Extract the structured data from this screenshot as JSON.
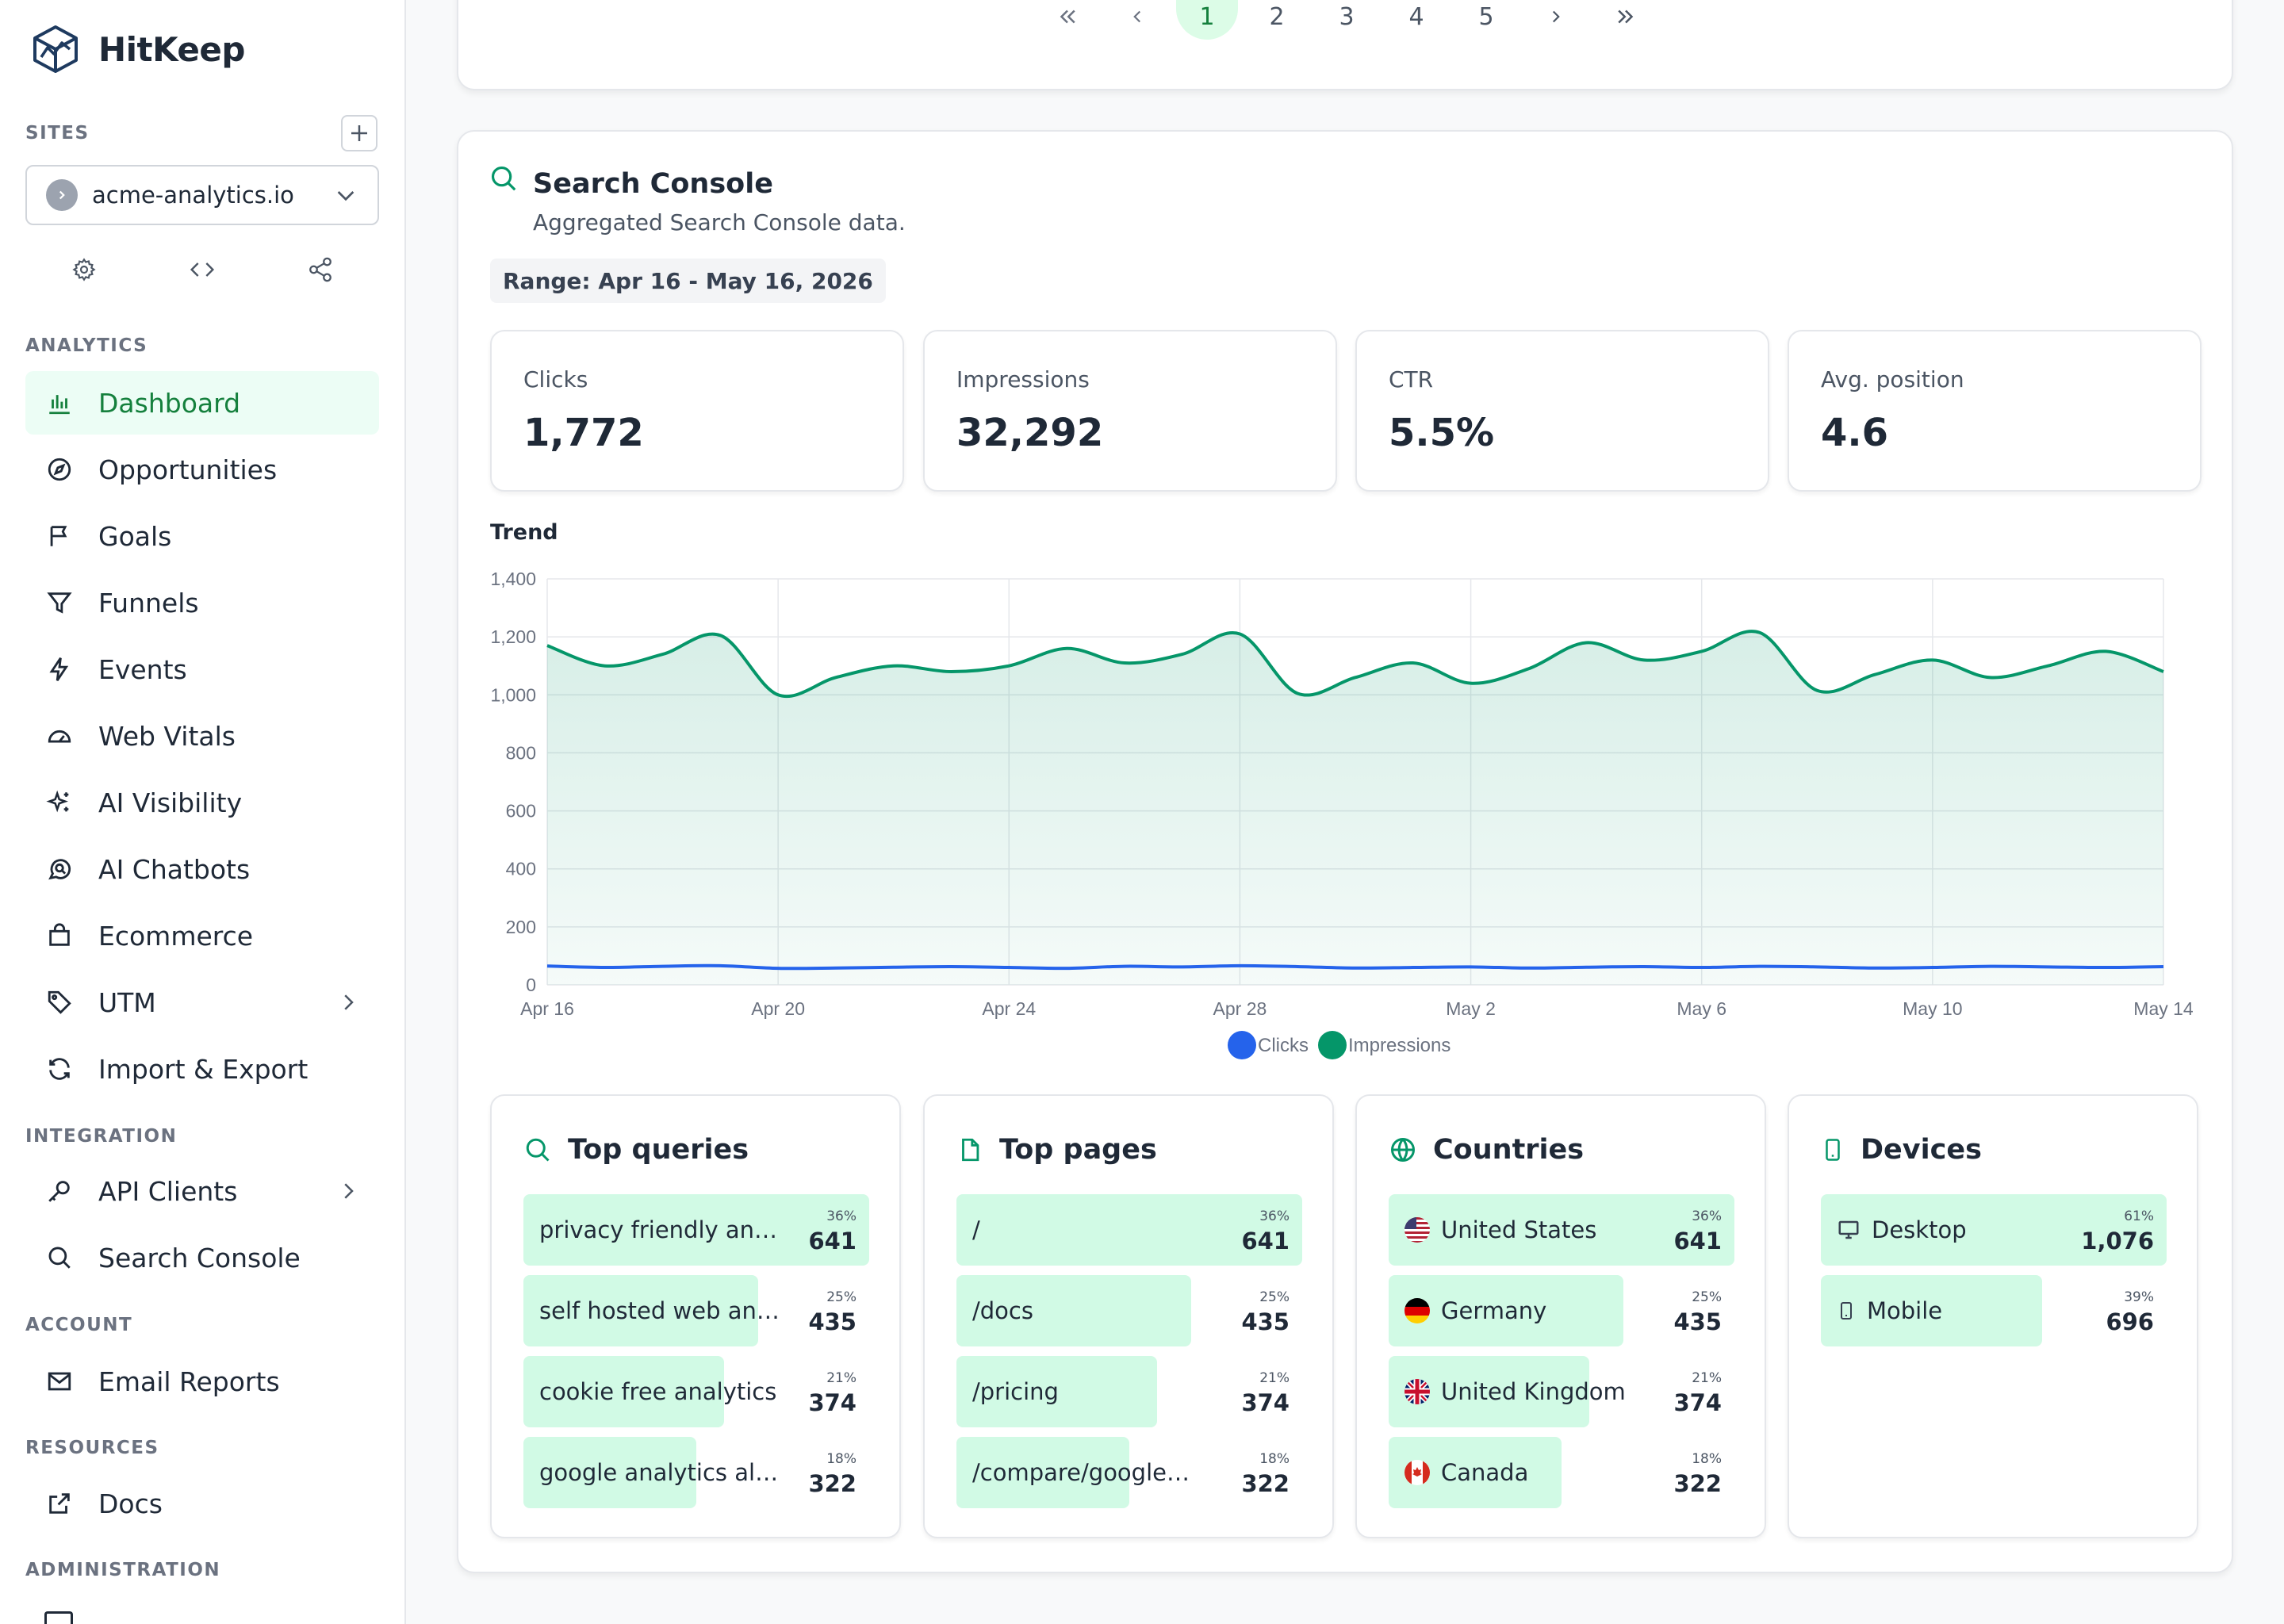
{
  "app": {
    "name": "HitKeep"
  },
  "sidebar": {
    "sites_label": "SITES",
    "site": {
      "name": "acme-analytics.io"
    },
    "sections": {
      "analytics": "ANALYTICS",
      "integration": "INTEGRATION",
      "account": "ACCOUNT",
      "resources": "RESOURCES",
      "administration": "ADMINISTRATION"
    },
    "items": [
      {
        "label": "Dashboard",
        "icon": "bar-chart-icon",
        "active": true
      },
      {
        "label": "Opportunities",
        "icon": "compass-icon"
      },
      {
        "label": "Goals",
        "icon": "flag-icon"
      },
      {
        "label": "Funnels",
        "icon": "funnel-icon"
      },
      {
        "label": "Events",
        "icon": "bolt-icon"
      },
      {
        "label": "Web Vitals",
        "icon": "gauge-icon"
      },
      {
        "label": "AI Visibility",
        "icon": "sparkles-icon"
      },
      {
        "label": "AI Chatbots",
        "icon": "chat-search-icon"
      },
      {
        "label": "Ecommerce",
        "icon": "shopping-bag-icon"
      },
      {
        "label": "UTM",
        "icon": "tag-icon"
      },
      {
        "label": "Import & Export",
        "icon": "refresh-icon"
      },
      {
        "label": "API Clients",
        "icon": "key-icon"
      },
      {
        "label": "Search Console",
        "icon": "search-icon"
      },
      {
        "label": "Email Reports",
        "icon": "mail-icon"
      },
      {
        "label": "Docs",
        "icon": "external-link-icon"
      }
    ]
  },
  "pagination": {
    "pages": [
      "1",
      "2",
      "3",
      "4",
      "5"
    ],
    "current": "1"
  },
  "search_console": {
    "title": "Search Console",
    "subtitle": "Aggregated Search Console data.",
    "range": "Range: Apr 16 - May 16, 2026",
    "stats": [
      {
        "label": "Clicks",
        "value": "1,772"
      },
      {
        "label": "Impressions",
        "value": "32,292"
      },
      {
        "label": "CTR",
        "value": "5.5%"
      },
      {
        "label": "Avg. position",
        "value": "4.6"
      }
    ],
    "trend_label": "Trend"
  },
  "chart_data": {
    "type": "area",
    "x_ticks": [
      "Apr 16",
      "Apr 20",
      "Apr 24",
      "Apr 28",
      "May 2",
      "May 6",
      "May 10",
      "May 14"
    ],
    "x": [
      "Apr 16",
      "Apr 17",
      "Apr 18",
      "Apr 19",
      "Apr 20",
      "Apr 21",
      "Apr 22",
      "Apr 23",
      "Apr 24",
      "Apr 25",
      "Apr 26",
      "Apr 27",
      "Apr 28",
      "Apr 29",
      "Apr 30",
      "May 1",
      "May 2",
      "May 3",
      "May 4",
      "May 5",
      "May 6",
      "May 7",
      "May 8",
      "May 9",
      "May 10",
      "May 11",
      "May 12",
      "May 13",
      "May 14"
    ],
    "ylim": [
      0,
      1400
    ],
    "y_ticks": [
      0,
      200,
      400,
      600,
      800,
      1000,
      1200,
      1400
    ],
    "grid": true,
    "legend_position": "bottom",
    "series": [
      {
        "name": "Clicks",
        "color": "#2563eb",
        "values": [
          65,
          60,
          64,
          66,
          57,
          58,
          61,
          63,
          60,
          57,
          64,
          62,
          66,
          63,
          58,
          60,
          62,
          58,
          61,
          63,
          60,
          64,
          62,
          58,
          60,
          64,
          62,
          60,
          63
        ]
      },
      {
        "name": "Impressions",
        "color": "#059669",
        "values": [
          1170,
          1100,
          1140,
          1205,
          1000,
          1060,
          1100,
          1080,
          1100,
          1160,
          1110,
          1140,
          1210,
          1005,
          1060,
          1110,
          1040,
          1090,
          1180,
          1120,
          1150,
          1215,
          1015,
          1070,
          1120,
          1060,
          1100,
          1150,
          1080
        ]
      }
    ]
  },
  "panels": {
    "queries": {
      "title": "Top queries",
      "rows": [
        {
          "label": "privacy friendly an…",
          "pct": "36%",
          "value": "641",
          "share": 1.0
        },
        {
          "label": "self hosted web an…",
          "pct": "25%",
          "value": "435",
          "share": 0.68
        },
        {
          "label": "cookie free analytics",
          "pct": "21%",
          "value": "374",
          "share": 0.58
        },
        {
          "label": "google analytics al…",
          "pct": "18%",
          "value": "322",
          "share": 0.5
        }
      ]
    },
    "pages": {
      "title": "Top pages",
      "rows": [
        {
          "label": "/",
          "pct": "36%",
          "value": "641",
          "share": 1.0
        },
        {
          "label": "/docs",
          "pct": "25%",
          "value": "435",
          "share": 0.68
        },
        {
          "label": "/pricing",
          "pct": "21%",
          "value": "374",
          "share": 0.58
        },
        {
          "label": "/compare/google…",
          "pct": "18%",
          "value": "322",
          "share": 0.5
        }
      ]
    },
    "countries": {
      "title": "Countries",
      "rows": [
        {
          "label": "United States",
          "pct": "36%",
          "value": "641",
          "share": 1.0,
          "flag": "us"
        },
        {
          "label": "Germany",
          "pct": "25%",
          "value": "435",
          "share": 0.68,
          "flag": "de"
        },
        {
          "label": "United Kingdom",
          "pct": "21%",
          "value": "374",
          "share": 0.58,
          "flag": "gb"
        },
        {
          "label": "Canada",
          "pct": "18%",
          "value": "322",
          "share": 0.5,
          "flag": "ca"
        }
      ]
    },
    "devices": {
      "title": "Devices",
      "rows": [
        {
          "label": "Desktop",
          "pct": "61%",
          "value": "1,076",
          "share": 1.0
        },
        {
          "label": "Mobile",
          "pct": "39%",
          "value": "696",
          "share": 0.64
        }
      ]
    }
  },
  "colors": {
    "accent": "#16a34a",
    "accent_bg": "#dcfce7",
    "bar_bg": "#d1fae5"
  }
}
